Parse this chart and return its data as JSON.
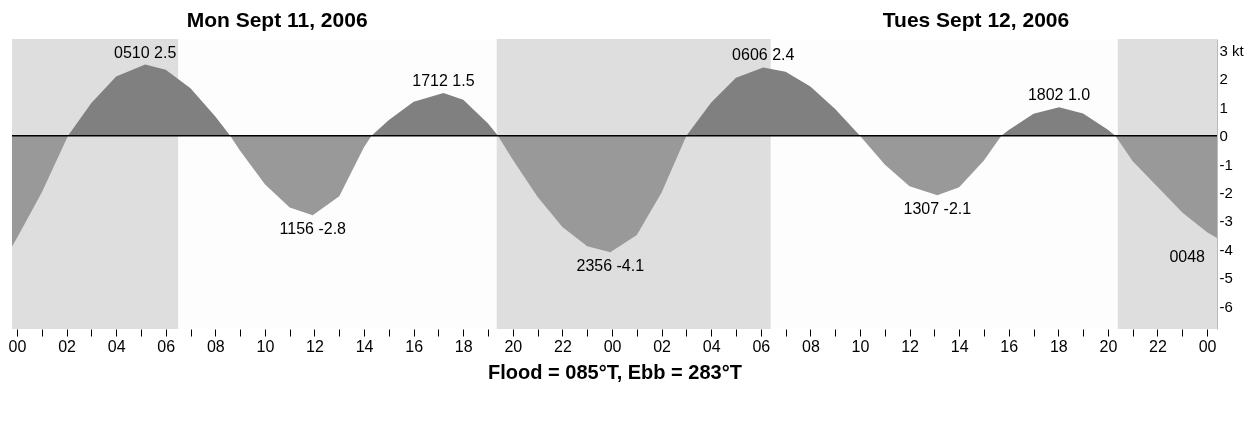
{
  "chart_data": {
    "type": "area",
    "title": "Mon Sept 11, 2006",
    "subtitle": "Tues Sept 12, 2006",
    "xlabel": "Flood = 085°T, Ebb = 283°T",
    "xlim": [
      -0.2,
      48.4
    ],
    "xticks": [
      {
        "value": 0,
        "label": "00"
      },
      {
        "value": 1,
        "label": null
      },
      {
        "value": 2,
        "label": "02"
      },
      {
        "value": 3,
        "label": null
      },
      {
        "value": 4,
        "label": "04"
      },
      {
        "value": 5,
        "label": null
      },
      {
        "value": 6,
        "label": "06"
      },
      {
        "value": 7,
        "label": null
      },
      {
        "value": 8,
        "label": "08"
      },
      {
        "value": 9,
        "label": null
      },
      {
        "value": 10,
        "label": "10"
      },
      {
        "value": 11,
        "label": null
      },
      {
        "value": 12,
        "label": "12"
      },
      {
        "value": 13,
        "label": null
      },
      {
        "value": 14,
        "label": "14"
      },
      {
        "value": 15,
        "label": null
      },
      {
        "value": 16,
        "label": "16"
      },
      {
        "value": 17,
        "label": null
      },
      {
        "value": 18,
        "label": "18"
      },
      {
        "value": 19,
        "label": null
      },
      {
        "value": 20,
        "label": "20"
      },
      {
        "value": 21,
        "label": null
      },
      {
        "value": 22,
        "label": "22"
      },
      {
        "value": 23,
        "label": null
      },
      {
        "value": 24,
        "label": "00"
      },
      {
        "value": 25,
        "label": null
      },
      {
        "value": 26,
        "label": "02"
      },
      {
        "value": 27,
        "label": null
      },
      {
        "value": 28,
        "label": "04"
      },
      {
        "value": 29,
        "label": null
      },
      {
        "value": 30,
        "label": "06"
      },
      {
        "value": 31,
        "label": null
      },
      {
        "value": 32,
        "label": "08"
      },
      {
        "value": 33,
        "label": null
      },
      {
        "value": 34,
        "label": "10"
      },
      {
        "value": 35,
        "label": null
      },
      {
        "value": 36,
        "label": "12"
      },
      {
        "value": 37,
        "label": null
      },
      {
        "value": 38,
        "label": "14"
      },
      {
        "value": 39,
        "label": null
      },
      {
        "value": 40,
        "label": "16"
      },
      {
        "value": 41,
        "label": null
      },
      {
        "value": 42,
        "label": "18"
      },
      {
        "value": 43,
        "label": null
      },
      {
        "value": 44,
        "label": "20"
      },
      {
        "value": 45,
        "label": null
      },
      {
        "value": 46,
        "label": "22"
      },
      {
        "value": 47,
        "label": null
      },
      {
        "value": 48,
        "label": "00"
      }
    ],
    "ylim": [
      -6.8,
      3.4
    ],
    "yticks": [
      {
        "value": 3,
        "label": "3 kt"
      },
      2,
      1,
      0,
      -1,
      -2,
      -3,
      -4,
      -5,
      -6
    ],
    "series": [
      {
        "color": "#808080",
        "x": [
          2.06,
          3,
          4,
          5.17,
          6,
          7,
          8,
          8.6,
          14.3,
          15,
          16,
          17.2,
          18,
          19,
          19.4,
          27,
          28,
          29,
          30.1,
          31,
          32,
          33,
          34,
          39.7,
          40,
          41,
          42.03,
          43,
          44,
          44.3
        ],
        "values": [
          0,
          1.15,
          2.08,
          2.5,
          2.32,
          1.67,
          0.67,
          0,
          0,
          0.55,
          1.19,
          1.5,
          1.26,
          0.43,
          0,
          0,
          1.17,
          2.04,
          2.4,
          2.25,
          1.73,
          0.94,
          0,
          0,
          0.2,
          0.77,
          1.0,
          0.78,
          0.21,
          0
        ]
      },
      {
        "color": "#999999",
        "x": [
          -0.2,
          0,
          1,
          2.06,
          8.6,
          9,
          10,
          11,
          11.93,
          13,
          14,
          14.3,
          19.4,
          20,
          21,
          22,
          23,
          23.93,
          25,
          26,
          27,
          34,
          35,
          36,
          37.12,
          38,
          39,
          39.7,
          44.3,
          45,
          46,
          47,
          48,
          48.4
        ],
        "values": [
          -3.9,
          -3.6,
          -2.0,
          0,
          0,
          -0.53,
          -1.71,
          -2.53,
          -2.8,
          -2.13,
          -0.4,
          0,
          0,
          -0.85,
          -2.16,
          -3.21,
          -3.89,
          -4.1,
          -3.49,
          -2.0,
          0,
          0,
          -1.01,
          -1.78,
          -2.1,
          -1.81,
          -0.87,
          0,
          0,
          -0.9,
          -1.8,
          -2.7,
          -3.4,
          -3.6
        ]
      }
    ],
    "bands": [
      {
        "axis": "x",
        "from": -0.2,
        "to": 6.5,
        "color": "#dedede"
      },
      {
        "axis": "x",
        "from": 19.35,
        "to": 30.4,
        "color": "#dedede"
      },
      {
        "axis": "x",
        "from": 44.4,
        "to": 48.4,
        "color": "#dedede"
      }
    ],
    "ref_lines": [
      {
        "axis": "y",
        "value": 0,
        "color": "#000000"
      }
    ],
    "annotations": [
      {
        "text": "0510 2.5",
        "x": 5.17,
        "y": 2.5
      },
      {
        "text": "1156 -2.8",
        "x": 11.93,
        "y": -2.8
      },
      {
        "text": "1712 1.5",
        "x": 17.2,
        "y": 1.5
      },
      {
        "text": "2356 -4.1",
        "x": 23.93,
        "y": -4.1
      },
      {
        "text": "0606 2.4",
        "x": 30.1,
        "y": 2.4
      },
      {
        "text": "1307 -2.1",
        "x": 37.12,
        "y": -2.1
      },
      {
        "text": "1802 1.0",
        "x": 42.03,
        "y": 1.0
      },
      "0048"
    ],
    "legend": false,
    "grid": false
  }
}
